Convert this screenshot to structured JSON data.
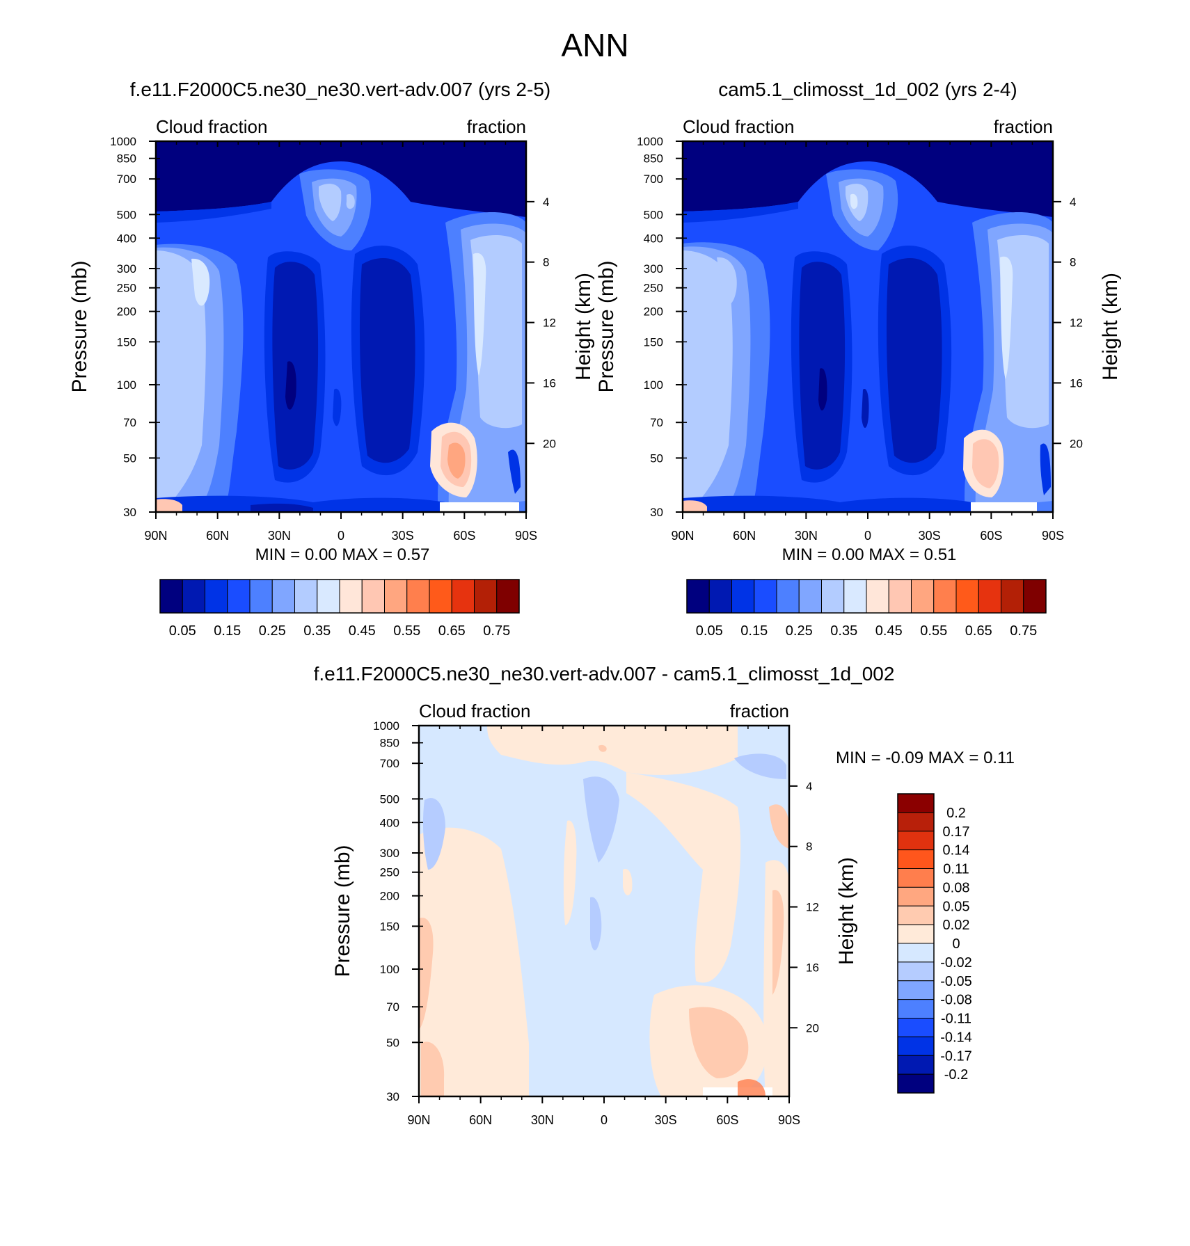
{
  "title": "ANN",
  "chart_data": [
    {
      "type": "heatmap",
      "title": "f.e11.F2000C5.ne30_ne30.vert-adv.007 (yrs 2-5)",
      "left_string": "Cloud fraction",
      "right_string": "fraction",
      "xlabel": "",
      "ylabel": "Pressure (mb)",
      "y2label": "Height (km)",
      "x_ticks": [
        "90N",
        "60N",
        "30N",
        "0",
        "30S",
        "60S",
        "90S"
      ],
      "y_ticks": [
        "30",
        "50",
        "70",
        "100",
        "150",
        "200",
        "250",
        "300",
        "400",
        "500",
        "700",
        "850",
        "1000"
      ],
      "y_tick_values": [
        30,
        50,
        70,
        100,
        150,
        200,
        250,
        300,
        400,
        500,
        700,
        850,
        1000
      ],
      "y2_ticks": [
        "20",
        "16",
        "12",
        "8",
        "4"
      ],
      "y2_tick_values": [
        20,
        16,
        12,
        8,
        4
      ],
      "xlim": [
        90,
        -90
      ],
      "ylim": [
        1000,
        30
      ],
      "min_max_text": "MIN =   0.00  MAX =   0.57",
      "colorbar": {
        "orientation": "horizontal",
        "labels": [
          "0.05",
          "0.15",
          "0.25",
          "0.35",
          "0.45",
          "0.55",
          "0.65",
          "0.75"
        ],
        "colors": [
          "#00007f",
          "#0019b2",
          "#0033e6",
          "#1a4dff",
          "#4d80ff",
          "#80a6ff",
          "#b3ccff",
          "#d9e9ff",
          "#ffe6d9",
          "#ffc7b3",
          "#ffa680",
          "#ff7f4d",
          "#ff5a1a",
          "#e6330f",
          "#b32006",
          "#7f0000"
        ]
      }
    },
    {
      "type": "heatmap",
      "title": "cam5.1_climosst_1d_002 (yrs 2-4)",
      "left_string": "Cloud fraction",
      "right_string": "fraction",
      "xlabel": "",
      "ylabel": "Pressure (mb)",
      "y2label": "Height (km)",
      "x_ticks": [
        "90N",
        "60N",
        "30N",
        "0",
        "30S",
        "60S",
        "90S"
      ],
      "y_ticks": [
        "30",
        "50",
        "70",
        "100",
        "150",
        "200",
        "250",
        "300",
        "400",
        "500",
        "700",
        "850",
        "1000"
      ],
      "y_tick_values": [
        30,
        50,
        70,
        100,
        150,
        200,
        250,
        300,
        400,
        500,
        700,
        850,
        1000
      ],
      "y2_ticks": [
        "20",
        "16",
        "12",
        "8",
        "4"
      ],
      "y2_tick_values": [
        20,
        16,
        12,
        8,
        4
      ],
      "xlim": [
        90,
        -90
      ],
      "ylim": [
        1000,
        30
      ],
      "min_max_text": "MIN =   0.00  MAX =   0.51",
      "colorbar": {
        "orientation": "horizontal",
        "labels": [
          "0.05",
          "0.15",
          "0.25",
          "0.35",
          "0.45",
          "0.55",
          "0.65",
          "0.75"
        ],
        "colors": [
          "#00007f",
          "#0019b2",
          "#0033e6",
          "#1a4dff",
          "#4d80ff",
          "#80a6ff",
          "#b3ccff",
          "#d9e9ff",
          "#ffe6d9",
          "#ffc7b3",
          "#ffa680",
          "#ff7f4d",
          "#ff5a1a",
          "#e6330f",
          "#b32006",
          "#7f0000"
        ]
      }
    },
    {
      "type": "heatmap",
      "title": "f.e11.F2000C5.ne30_ne30.vert-adv.007 - cam5.1_climosst_1d_002",
      "left_string": "Cloud fraction",
      "right_string": "fraction",
      "xlabel": "",
      "ylabel": "Pressure (mb)",
      "y2label": "Height (km)",
      "x_ticks": [
        "90N",
        "60N",
        "30N",
        "0",
        "30S",
        "60S",
        "90S"
      ],
      "y_ticks": [
        "30",
        "50",
        "70",
        "100",
        "150",
        "200",
        "250",
        "300",
        "400",
        "500",
        "700",
        "850",
        "1000"
      ],
      "y_tick_values": [
        30,
        50,
        70,
        100,
        150,
        200,
        250,
        300,
        400,
        500,
        700,
        850,
        1000
      ],
      "y2_ticks": [
        "20",
        "16",
        "12",
        "8",
        "4"
      ],
      "y2_tick_values": [
        20,
        16,
        12,
        8,
        4
      ],
      "xlim": [
        90,
        -90
      ],
      "ylim": [
        1000,
        30
      ],
      "min_max_text": "MIN =  -0.09  MAX =   0.11",
      "colorbar": {
        "orientation": "vertical",
        "labels": [
          "0.2",
          "0.17",
          "0.14",
          "0.11",
          "0.08",
          "0.05",
          "0.02",
          "0",
          "-0.02",
          "-0.05",
          "-0.08",
          "-0.11",
          "-0.14",
          "-0.17",
          "-0.2"
        ],
        "colors": [
          "#8b0000",
          "#b8200a",
          "#e0320f",
          "#ff561c",
          "#ff7e4d",
          "#ffa780",
          "#ffcbb0",
          "#ffead9",
          "#d6e8ff",
          "#b5ccff",
          "#80a6ff",
          "#4d80ff",
          "#1a4dff",
          "#0033e6",
          "#0019b2",
          "#00007f"
        ]
      }
    }
  ]
}
